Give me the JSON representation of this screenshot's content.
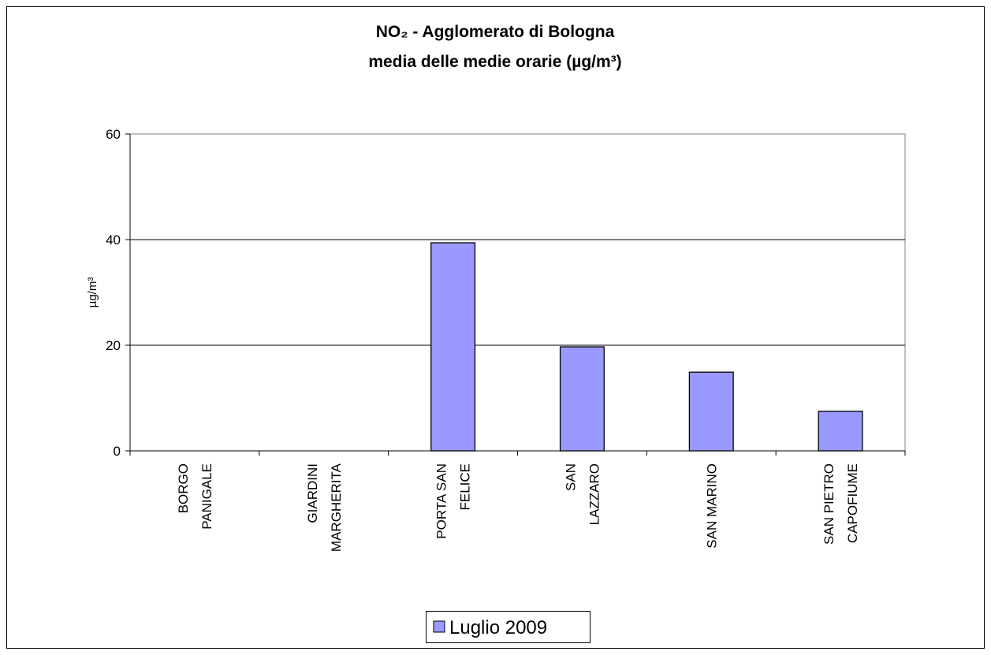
{
  "chart_data": {
    "type": "bar",
    "title": [
      "NO₂ - Agglomerato di Bologna",
      "media delle medie orarie (µg/m³)"
    ],
    "y_label": "µg/m³",
    "categories": [
      [
        "BORGO",
        "PANIGALE"
      ],
      [
        "GIARDINI",
        "MARGHERITA"
      ],
      [
        "PORTA SAN",
        "FELICE"
      ],
      [
        "SAN",
        "LAZZARO"
      ],
      [
        "SAN MARINO"
      ],
      [
        "SAN PIETRO",
        "CAPOFIUME"
      ]
    ],
    "series": [
      {
        "name": "Luglio 2009",
        "color": "#9999ff",
        "values": [
          null,
          null,
          39.4,
          19.7,
          14.9,
          7.5
        ]
      }
    ],
    "ylim": [
      0,
      60
    ],
    "yticks": [
      0,
      20,
      40,
      60
    ],
    "grid": true,
    "legend": "bottom"
  }
}
